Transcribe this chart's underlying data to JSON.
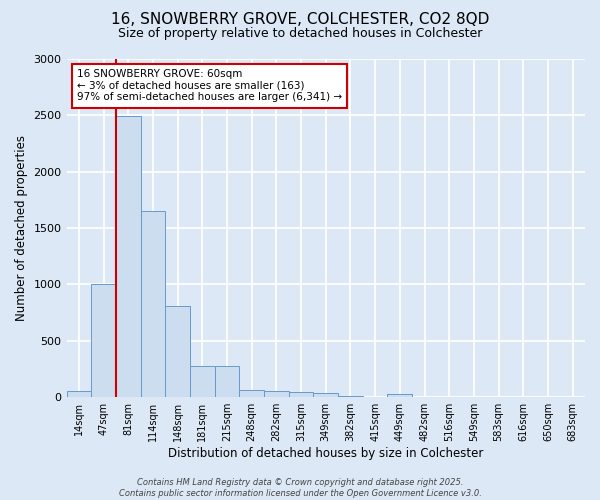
{
  "title": "16, SNOWBERRY GROVE, COLCHESTER, CO2 8QD",
  "subtitle": "Size of property relative to detached houses in Colchester",
  "xlabel": "Distribution of detached houses by size in Colchester",
  "ylabel": "Number of detached properties",
  "categories": [
    "14sqm",
    "47sqm",
    "81sqm",
    "114sqm",
    "148sqm",
    "181sqm",
    "215sqm",
    "248sqm",
    "282sqm",
    "315sqm",
    "349sqm",
    "382sqm",
    "415sqm",
    "449sqm",
    "482sqm",
    "516sqm",
    "549sqm",
    "583sqm",
    "616sqm",
    "650sqm",
    "683sqm"
  ],
  "values": [
    55,
    1000,
    2490,
    1650,
    810,
    280,
    280,
    60,
    55,
    45,
    35,
    10,
    5,
    30,
    0,
    0,
    0,
    0,
    0,
    0,
    0
  ],
  "bar_color": "#ccddf0",
  "bar_edge_color": "#6699cc",
  "red_line_index": 1.5,
  "annotation_text": "16 SNOWBERRY GROVE: 60sqm\n← 3% of detached houses are smaller (163)\n97% of semi-detached houses are larger (6,341) →",
  "annotation_box_color": "white",
  "annotation_box_edge_color": "#cc0000",
  "red_line_color": "#cc0000",
  "ylim": [
    0,
    3000
  ],
  "yticks": [
    0,
    500,
    1000,
    1500,
    2000,
    2500,
    3000
  ],
  "background_color": "#dce8f5",
  "plot_bg_color": "#dce8f5",
  "grid_color": "white",
  "footer_line1": "Contains HM Land Registry data © Crown copyright and database right 2025.",
  "footer_line2": "Contains public sector information licensed under the Open Government Licence v3.0.",
  "title_fontsize": 11,
  "subtitle_fontsize": 9,
  "title_fontweight": "normal"
}
